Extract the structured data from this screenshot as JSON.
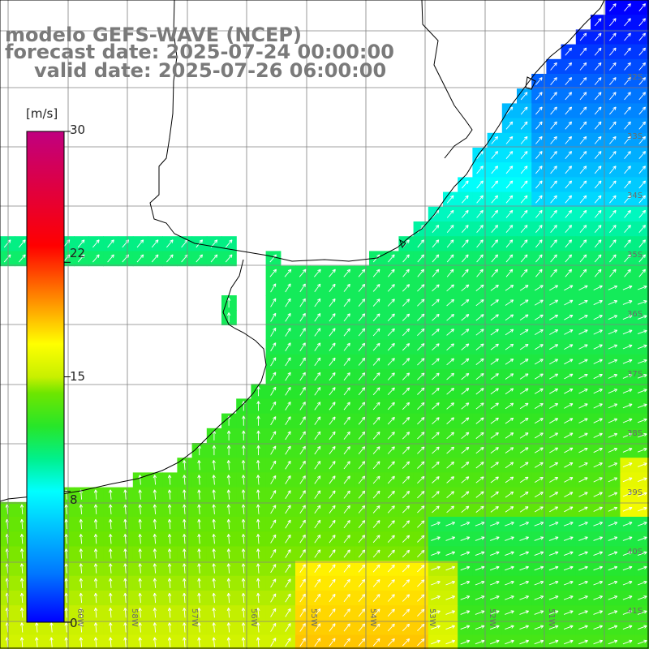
{
  "title": {
    "line1": "modelo GEFS-WAVE (NCEP)",
    "line2": "forecast date: 2025-07-24 00:00:00",
    "line3": "valid date: 2025-07-26 06:00:00"
  },
  "colorbar": {
    "unit": "[m/s]",
    "ticks": [
      "30",
      "22",
      "15",
      "8",
      "0"
    ],
    "tick_values": [
      30,
      22,
      15,
      8,
      0
    ],
    "colors": [
      "#0000ff",
      "#0090ff",
      "#00e8ff",
      "#00ff60",
      "#30d800",
      "#ffff00",
      "#ff8000",
      "#ff0000",
      "#c00080"
    ]
  },
  "map": {
    "lon_labels": [
      "60W",
      "58W",
      "57W",
      "56W",
      "55W",
      "54W",
      "53W",
      "52W",
      "51W"
    ],
    "lat_labels": [
      "32S",
      "33S",
      "34S",
      "35S",
      "36S",
      "37S",
      "38S",
      "39S",
      "40S",
      "41S"
    ],
    "land_color": "#ffffff",
    "grid_color": "#888888",
    "coast_color": "#000000"
  }
}
